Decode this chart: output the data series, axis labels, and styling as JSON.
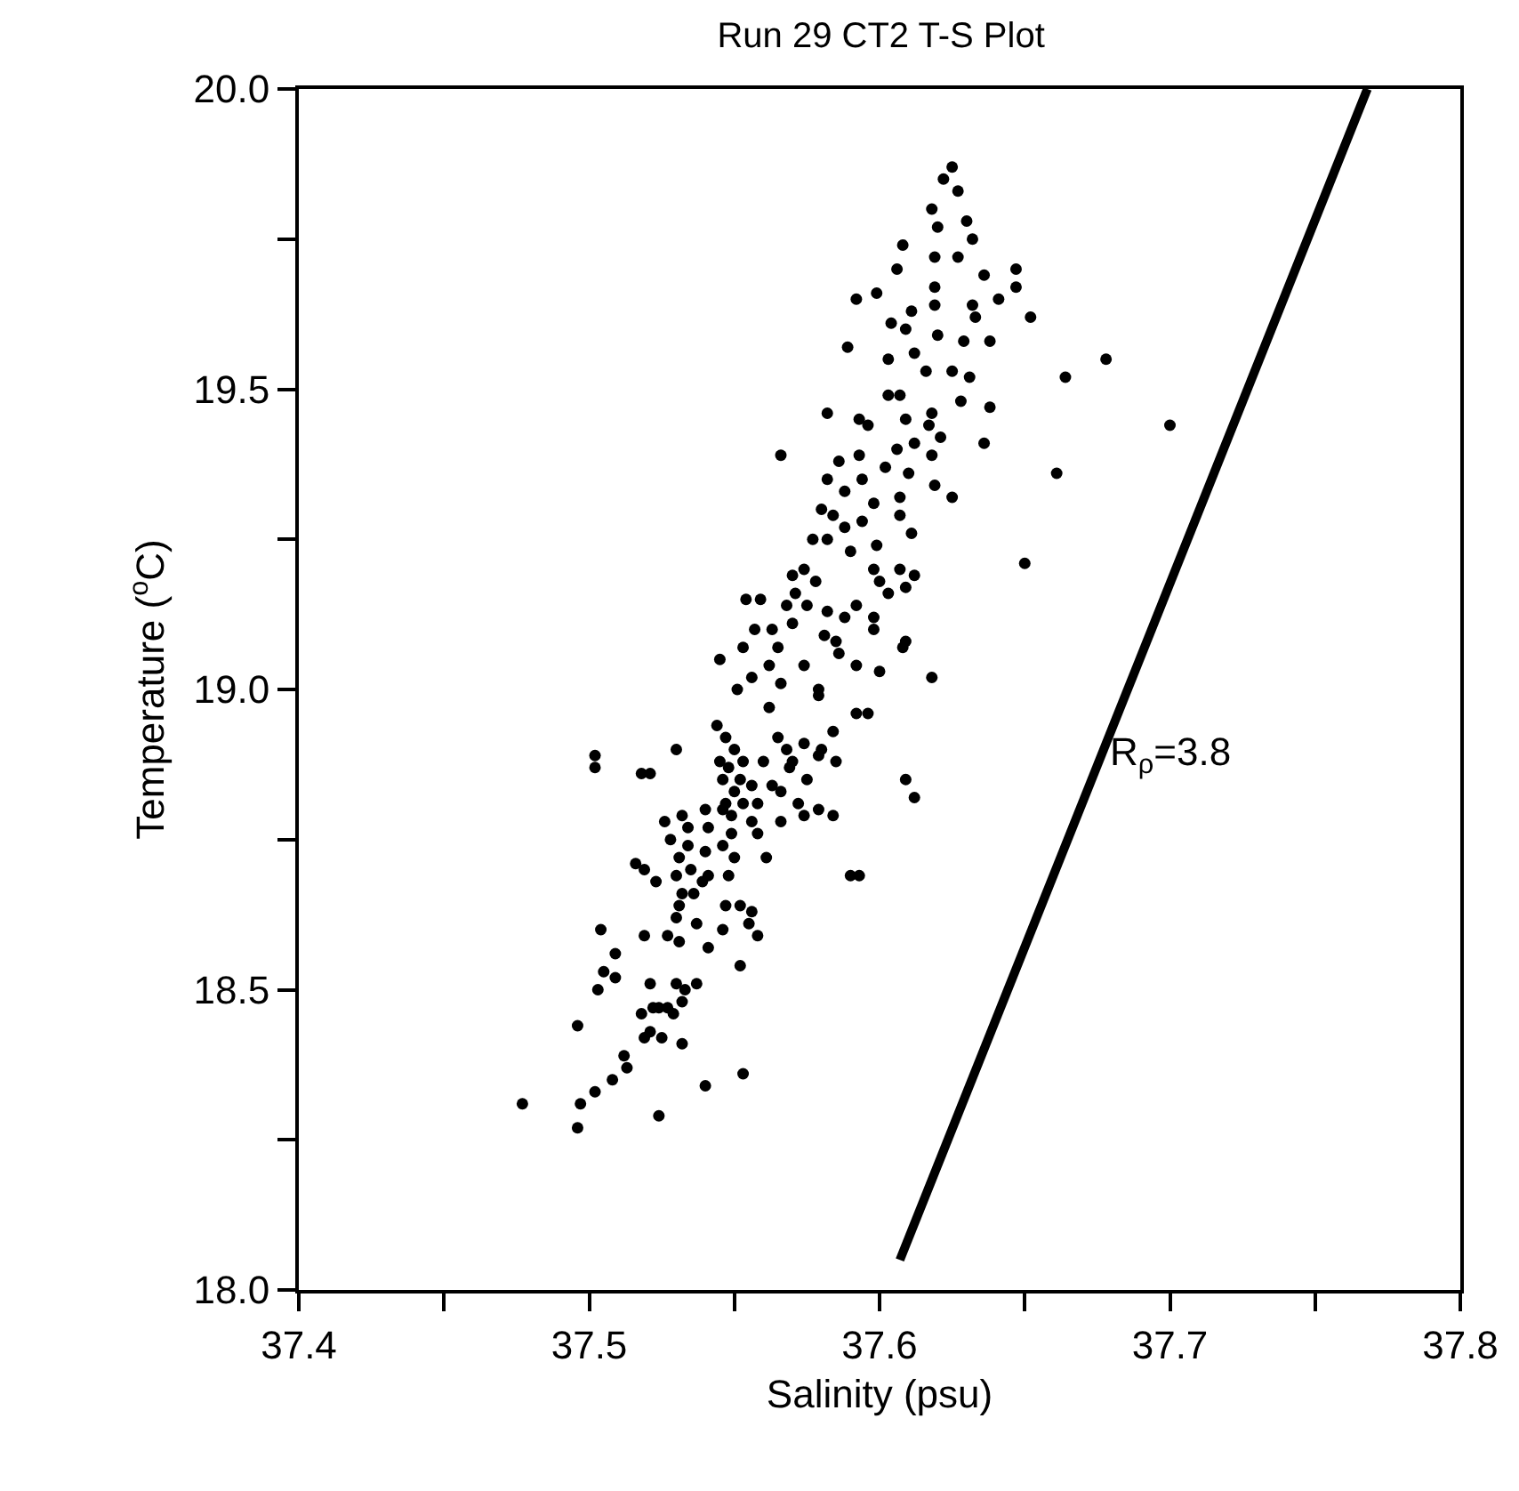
{
  "chart_data": {
    "type": "scatter",
    "title": "Run 29 CT2 T-S Plot",
    "xlabel": "Salinity (psu)",
    "ylabel": "Temperature ($^{o}$C)",
    "xlim": [
      37.4,
      37.8
    ],
    "ylim": [
      18.0,
      20.0
    ],
    "xticks": [
      37.4,
      {
        "value": 37.45,
        "label": null
      },
      37.5,
      {
        "value": 37.55,
        "label": null
      },
      37.6,
      {
        "value": 37.65,
        "label": null
      },
      37.7,
      {
        "value": 37.75,
        "label": null
      },
      37.8
    ],
    "yticks": [
      {
        "value": 18.0,
        "label": "18.0"
      },
      {
        "value": 18.25,
        "label": null
      },
      18.5,
      {
        "value": 18.75,
        "label": null
      },
      {
        "value": 19.0,
        "label": "19.0"
      },
      {
        "value": 19.25,
        "label": null
      },
      19.5,
      {
        "value": 19.75,
        "label": null
      },
      {
        "value": 20.0,
        "label": "20.0"
      }
    ],
    "legend": false,
    "marker": "circle",
    "annotations": [
      "R$_{ρ}$=3.8"
    ],
    "series": [
      {
        "color": "#000000",
        "x": [
          37.625,
          37.622,
          37.627,
          37.618,
          37.63,
          37.62,
          37.632,
          37.627,
          37.608,
          37.606,
          37.619,
          37.636,
          37.647,
          37.647,
          37.641,
          37.652,
          37.599,
          37.592,
          37.619,
          37.619,
          37.632,
          37.633,
          37.611,
          37.609,
          37.604,
          37.638,
          37.629,
          37.62,
          37.589,
          37.603,
          37.612,
          37.625,
          37.631,
          37.616,
          37.678,
          37.664,
          37.7,
          37.603,
          37.607,
          37.628,
          37.638,
          37.618,
          37.609,
          37.593,
          37.582,
          37.596,
          37.617,
          37.621,
          37.612,
          37.618,
          37.636,
          37.606,
          37.593,
          37.586,
          37.566,
          37.602,
          37.61,
          37.619,
          37.625,
          37.661,
          37.65,
          37.582,
          37.588,
          37.594,
          37.598,
          37.607,
          37.584,
          37.58,
          37.588,
          37.594,
          37.582,
          37.577,
          37.59,
          37.599,
          37.607,
          37.611,
          37.598,
          37.6,
          37.607,
          37.612,
          37.609,
          37.603,
          37.574,
          37.57,
          37.578,
          37.571,
          37.575,
          37.582,
          37.588,
          37.592,
          37.568,
          37.554,
          37.559,
          37.563,
          37.557,
          37.57,
          37.581,
          37.585,
          37.598,
          37.598,
          37.609,
          37.608,
          37.553,
          37.545,
          37.565,
          37.586,
          37.562,
          37.574,
          37.592,
          37.6,
          37.618,
          37.556,
          37.566,
          37.551,
          37.579,
          37.562,
          37.579,
          37.592,
          37.596,
          37.584,
          37.544,
          37.547,
          37.55,
          37.53,
          37.502,
          37.502,
          37.518,
          37.521,
          37.545,
          37.553,
          37.56,
          37.565,
          37.568,
          37.57,
          37.569,
          37.574,
          37.58,
          37.579,
          37.585,
          37.575,
          37.563,
          37.566,
          37.548,
          37.546,
          37.552,
          37.556,
          37.55,
          37.553,
          37.547,
          37.558,
          37.572,
          37.574,
          37.579,
          37.584,
          37.566,
          37.609,
          37.612,
          37.54,
          37.546,
          37.549,
          37.556,
          37.558,
          37.526,
          37.532,
          37.534,
          37.541,
          37.546,
          37.549,
          37.528,
          37.534,
          37.54,
          37.561,
          37.55,
          37.548,
          37.541,
          37.539,
          37.535,
          37.531,
          37.516,
          37.519,
          37.523,
          37.53,
          37.532,
          37.536,
          37.59,
          37.593,
          37.552,
          37.556,
          37.547,
          37.555,
          37.531,
          37.53,
          37.537,
          37.546,
          37.504,
          37.519,
          37.527,
          37.531,
          37.541,
          37.558,
          37.509,
          37.552,
          37.521,
          37.53,
          37.537,
          37.533,
          37.532,
          37.503,
          37.509,
          37.505,
          37.524,
          37.527,
          37.529,
          37.518,
          37.522,
          37.496,
          37.521,
          37.519,
          37.525,
          37.532,
          37.512,
          37.513,
          37.508,
          37.502,
          37.497,
          37.54,
          37.553,
          37.524,
          37.496,
          37.477
        ],
        "values": [
          19.87,
          19.85,
          19.83,
          19.8,
          19.78,
          19.77,
          19.75,
          19.72,
          19.74,
          19.7,
          19.72,
          19.69,
          19.7,
          19.67,
          19.65,
          19.62,
          19.66,
          19.65,
          19.67,
          19.64,
          19.64,
          19.62,
          19.63,
          19.6,
          19.61,
          19.58,
          19.58,
          19.59,
          19.57,
          19.55,
          19.56,
          19.53,
          19.52,
          19.53,
          19.55,
          19.52,
          19.44,
          19.49,
          19.49,
          19.48,
          19.47,
          19.46,
          19.45,
          19.45,
          19.46,
          19.44,
          19.44,
          19.42,
          19.41,
          19.39,
          19.41,
          19.4,
          19.39,
          19.38,
          19.39,
          19.37,
          19.36,
          19.34,
          19.32,
          19.36,
          19.21,
          19.35,
          19.33,
          19.35,
          19.31,
          19.32,
          19.29,
          19.3,
          19.27,
          19.28,
          19.25,
          19.25,
          19.23,
          19.24,
          19.29,
          19.26,
          19.2,
          19.18,
          19.2,
          19.19,
          19.17,
          19.16,
          19.2,
          19.19,
          19.18,
          19.16,
          19.14,
          19.13,
          19.12,
          19.14,
          19.14,
          19.15,
          19.15,
          19.1,
          19.1,
          19.11,
          19.09,
          19.08,
          19.12,
          19.1,
          19.08,
          19.07,
          19.07,
          19.05,
          19.07,
          19.06,
          19.04,
          19.04,
          19.04,
          19.03,
          19.02,
          19.02,
          19.01,
          19.0,
          19.0,
          18.97,
          18.99,
          18.96,
          18.96,
          18.93,
          18.94,
          18.92,
          18.9,
          18.9,
          18.89,
          18.87,
          18.86,
          18.86,
          18.88,
          18.88,
          18.88,
          18.92,
          18.9,
          18.88,
          18.87,
          18.91,
          18.9,
          18.89,
          18.88,
          18.85,
          18.84,
          18.83,
          18.87,
          18.85,
          18.85,
          18.84,
          18.83,
          18.81,
          18.81,
          18.81,
          18.81,
          18.79,
          18.8,
          18.79,
          18.78,
          18.85,
          18.82,
          18.8,
          18.8,
          18.79,
          18.78,
          18.76,
          18.78,
          18.79,
          18.77,
          18.77,
          18.74,
          18.76,
          18.75,
          18.74,
          18.73,
          18.72,
          18.72,
          18.69,
          18.69,
          18.68,
          18.7,
          18.72,
          18.71,
          18.7,
          18.68,
          18.69,
          18.66,
          18.66,
          18.69,
          18.69,
          18.64,
          18.63,
          18.64,
          18.61,
          18.64,
          18.62,
          18.61,
          18.6,
          18.6,
          18.59,
          18.59,
          18.58,
          18.57,
          18.59,
          18.56,
          18.54,
          18.51,
          18.51,
          18.51,
          18.5,
          18.48,
          18.5,
          18.52,
          18.53,
          18.47,
          18.47,
          18.46,
          18.46,
          18.47,
          18.44,
          18.43,
          18.42,
          18.42,
          18.41,
          18.39,
          18.37,
          18.35,
          18.33,
          18.31,
          18.34,
          18.36,
          18.29,
          18.27,
          18.31
        ]
      },
      {
        "type": "line",
        "color": "#000000",
        "marker": "none",
        "line_style": "solid",
        "x": [
          37.607,
          37.768
        ],
        "values": [
          18.05,
          20.0
        ]
      }
    ]
  }
}
